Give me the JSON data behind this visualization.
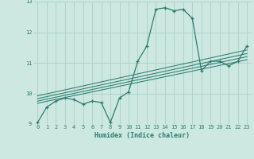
{
  "xlabel": "Humidex (Indice chaleur)",
  "ylabel": "",
  "bg_color": "#cce8e0",
  "line_color": "#2e7d6e",
  "grid_color": "#aad0c8",
  "xlim": [
    -0.5,
    23.5
  ],
  "ylim": [
    9,
    13
  ],
  "xticks": [
    0,
    1,
    2,
    3,
    4,
    5,
    6,
    7,
    8,
    9,
    10,
    11,
    12,
    13,
    14,
    15,
    16,
    17,
    18,
    19,
    20,
    21,
    22,
    23
  ],
  "yticks": [
    9,
    10,
    11,
    12,
    13
  ],
  "series": [
    [
      0,
      9.05
    ],
    [
      1,
      9.55
    ],
    [
      2,
      9.75
    ],
    [
      3,
      9.85
    ],
    [
      4,
      9.8
    ],
    [
      5,
      9.65
    ],
    [
      6,
      9.75
    ],
    [
      7,
      9.7
    ],
    [
      8,
      9.05
    ],
    [
      9,
      9.85
    ],
    [
      10,
      10.05
    ],
    [
      11,
      11.05
    ],
    [
      12,
      11.55
    ],
    [
      13,
      12.75
    ],
    [
      14,
      12.8
    ],
    [
      15,
      12.7
    ],
    [
      16,
      12.75
    ],
    [
      17,
      12.45
    ],
    [
      18,
      10.75
    ],
    [
      19,
      11.05
    ],
    [
      20,
      11.05
    ],
    [
      21,
      10.9
    ],
    [
      22,
      11.05
    ],
    [
      23,
      11.55
    ]
  ],
  "trend_lines": [
    {
      "x": [
        0,
        23
      ],
      "y": [
        9.68,
        11.1
      ]
    },
    {
      "x": [
        0,
        23
      ],
      "y": [
        9.75,
        11.2
      ]
    },
    {
      "x": [
        0,
        23
      ],
      "y": [
        9.83,
        11.3
      ]
    },
    {
      "x": [
        0,
        23
      ],
      "y": [
        9.92,
        11.42
      ]
    }
  ]
}
